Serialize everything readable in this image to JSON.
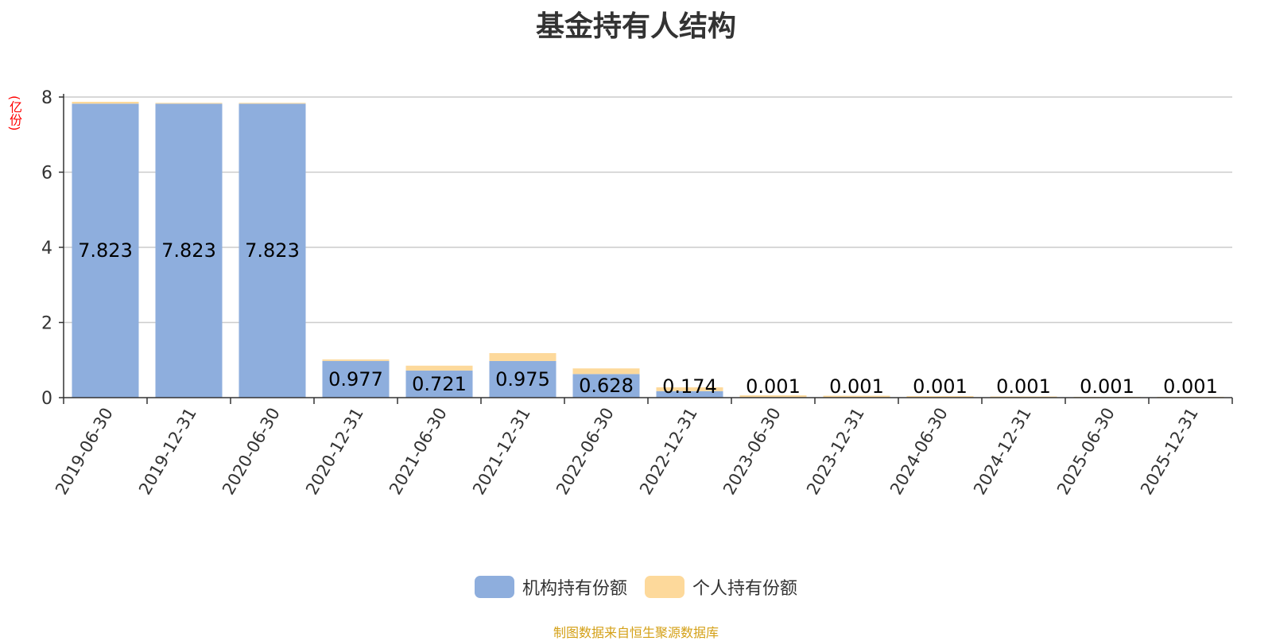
{
  "chart_data": {
    "type": "bar",
    "stacked": true,
    "title": "基金持有人结构",
    "y_unit": "(亿份)",
    "ylim": [
      0,
      8
    ],
    "yticks": [
      0,
      2,
      4,
      6,
      8
    ],
    "grid": true,
    "legend_position": "bottom",
    "categories": [
      "2019-06-30",
      "2019-12-31",
      "2020-06-30",
      "2020-12-31",
      "2021-06-30",
      "2021-12-31",
      "2022-06-30",
      "2022-12-31",
      "2023-06-30",
      "2023-12-31",
      "2024-06-30",
      "2024-12-31",
      "2025-06-30",
      "2025-12-31"
    ],
    "series": [
      {
        "name": "机构持有份额",
        "color": "#8eaedd",
        "values": [
          7.823,
          7.823,
          7.823,
          0.977,
          0.721,
          0.975,
          0.628,
          0.174,
          0.001,
          0.001,
          0.001,
          0.001,
          0.001,
          0.001
        ]
      },
      {
        "name": "个人持有份额",
        "color": "#fdd99b",
        "values": [
          0.05,
          0.02,
          0.02,
          0.04,
          0.13,
          0.21,
          0.15,
          0.1,
          0.06,
          0.05,
          0.04,
          0.03,
          0.02,
          0.02
        ]
      }
    ],
    "data_labels": [
      "7.823",
      "7.823",
      "7.823",
      "0.977",
      "0.721",
      "0.975",
      "0.628",
      "0.174",
      "0.001",
      "0.001",
      "0.001",
      "0.001",
      "0.001",
      "0.001"
    ]
  },
  "source_note": "制图数据来自恒生聚源数据库"
}
